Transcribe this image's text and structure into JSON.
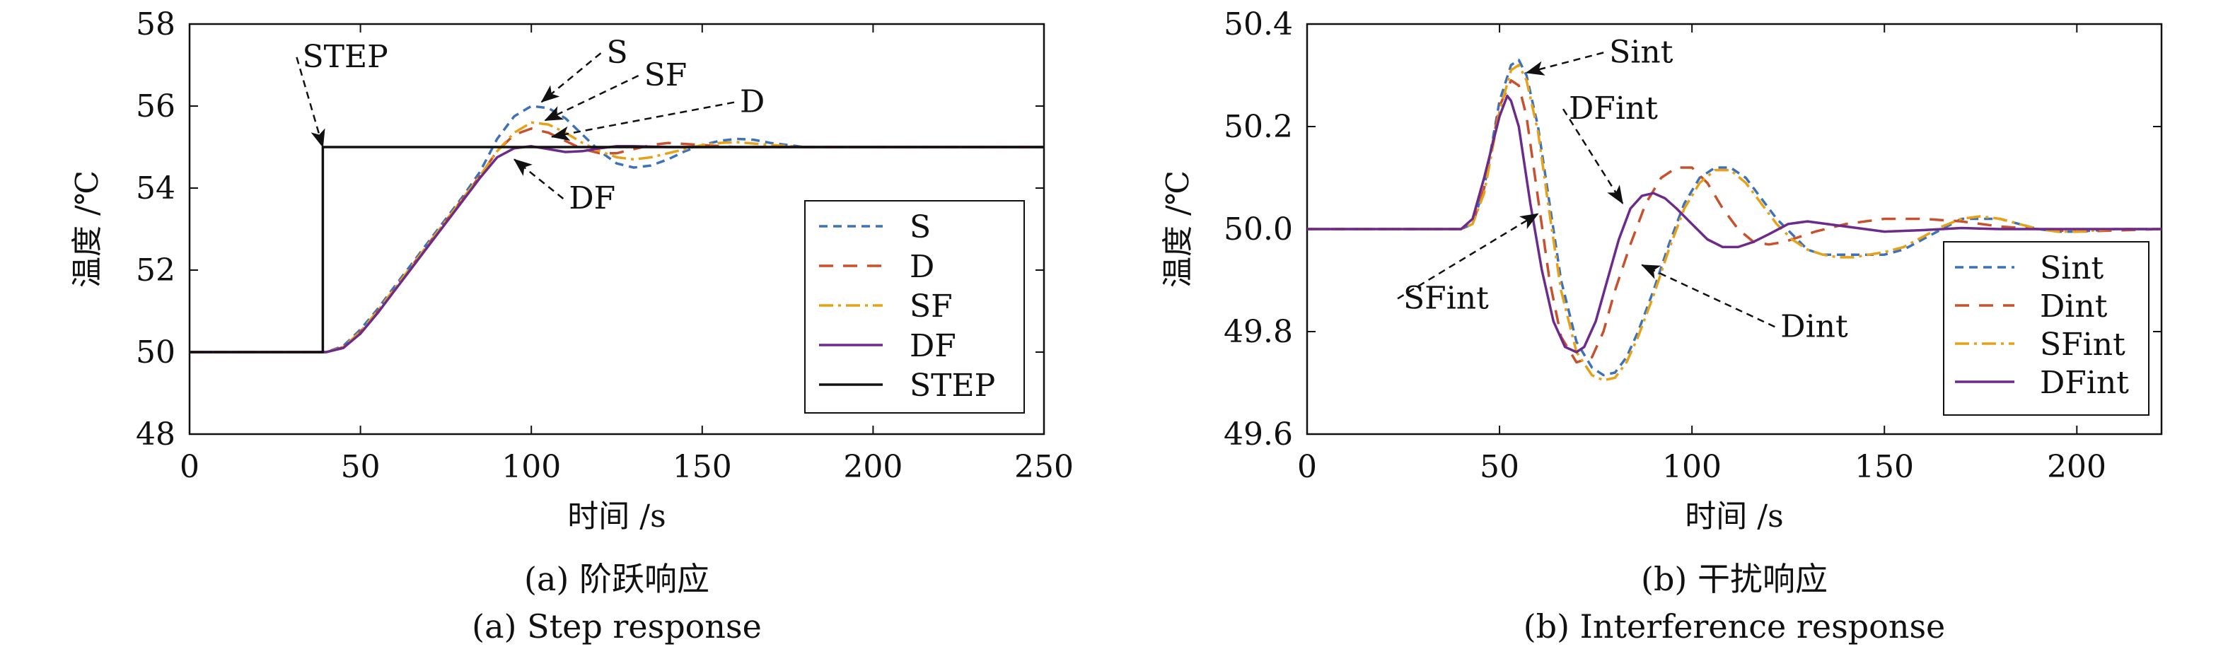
{
  "chart_data": [
    {
      "type": "line",
      "xlabel": "时间 /s",
      "ylabel": "温度 /℃",
      "xlim": [
        0,
        250
      ],
      "ylim": [
        48,
        58
      ],
      "xticks": [
        "0",
        "50",
        "100",
        "150",
        "200",
        "250"
      ],
      "yticks": [
        "48",
        "50",
        "52",
        "54",
        "56",
        "58"
      ],
      "grid": false,
      "legend_position": "bottom-right",
      "caption_cn": "(a) 阶跃响应",
      "caption_en": "(a) Step response",
      "series": [
        {
          "name": "S",
          "color": "#3d72b8",
          "dash": "dashed",
          "x": [
            0,
            40,
            45,
            50,
            55,
            60,
            65,
            70,
            75,
            80,
            85,
            90,
            95,
            100,
            105,
            110,
            115,
            120,
            125,
            130,
            135,
            140,
            145,
            150,
            155,
            160,
            165,
            170,
            175,
            180,
            190,
            200,
            250
          ],
          "y": [
            50,
            50,
            50.15,
            50.55,
            51.05,
            51.6,
            52.15,
            52.7,
            53.25,
            53.8,
            54.4,
            55.2,
            55.75,
            56,
            55.95,
            55.7,
            55.3,
            54.9,
            54.6,
            54.5,
            54.55,
            54.7,
            54.9,
            55.05,
            55.15,
            55.2,
            55.18,
            55.1,
            55.05,
            55,
            55,
            55,
            55
          ]
        },
        {
          "name": "D",
          "color": "#c8502d",
          "dash": "dashed",
          "x": [
            0,
            40,
            45,
            50,
            55,
            60,
            65,
            70,
            75,
            80,
            85,
            90,
            95,
            100,
            105,
            110,
            115,
            120,
            125,
            130,
            135,
            140,
            150,
            160,
            170,
            180,
            200,
            250
          ],
          "y": [
            50,
            50,
            50.12,
            50.5,
            51,
            51.55,
            52.1,
            52.65,
            53.2,
            53.75,
            54.3,
            54.9,
            55.3,
            55.45,
            55.35,
            55.15,
            54.95,
            54.85,
            54.85,
            54.95,
            55.05,
            55.1,
            55.05,
            55,
            55,
            55,
            55,
            55
          ]
        },
        {
          "name": "SF",
          "color": "#e6a117",
          "dash": "dashdot",
          "x": [
            0,
            40,
            45,
            50,
            55,
            60,
            65,
            70,
            75,
            80,
            85,
            90,
            95,
            100,
            105,
            110,
            115,
            120,
            125,
            130,
            135,
            140,
            145,
            150,
            155,
            160,
            170,
            180,
            200,
            250
          ],
          "y": [
            50,
            50,
            50.12,
            50.5,
            51,
            51.55,
            52.1,
            52.65,
            53.2,
            53.75,
            54.3,
            54.9,
            55.35,
            55.6,
            55.55,
            55.35,
            55.1,
            54.9,
            54.75,
            54.7,
            54.75,
            54.85,
            54.95,
            55.05,
            55.1,
            55.12,
            55.05,
            55,
            55,
            55
          ]
        },
        {
          "name": "DF",
          "color": "#6c2a8a",
          "dash": "solid",
          "x": [
            0,
            40,
            45,
            50,
            55,
            60,
            65,
            70,
            75,
            80,
            85,
            90,
            95,
            100,
            105,
            110,
            115,
            120,
            125,
            130,
            140,
            150,
            200,
            250
          ],
          "y": [
            50,
            50,
            50.1,
            50.45,
            50.95,
            51.5,
            52.05,
            52.6,
            53.15,
            53.7,
            54.25,
            54.75,
            54.97,
            55.02,
            54.95,
            54.88,
            54.9,
            54.97,
            55.02,
            55.02,
            55,
            55,
            55,
            55
          ]
        },
        {
          "name": "STEP",
          "color": "#111111",
          "dash": "solid",
          "x": [
            0,
            39,
            39,
            250
          ],
          "y": [
            50,
            50,
            55,
            55
          ]
        }
      ],
      "annotations": [
        {
          "text": "STEP",
          "x": 33,
          "y": 56.95,
          "arrow_to": [
            39,
            55
          ]
        },
        {
          "text": "S",
          "x": 122,
          "y": 57.05,
          "arrow_to": [
            103,
            56.1
          ]
        },
        {
          "text": "SF",
          "x": 133,
          "y": 56.5,
          "arrow_to": [
            104,
            55.65
          ]
        },
        {
          "text": "D",
          "x": 161,
          "y": 55.85,
          "arrow_to": [
            106,
            55.25
          ]
        },
        {
          "text": "DF",
          "x": 111,
          "y": 53.5,
          "arrow_to": [
            95,
            54.7
          ]
        }
      ]
    },
    {
      "type": "line",
      "xlabel": "时间 /s",
      "ylabel": "温度 /℃",
      "xlim": [
        0,
        222
      ],
      "ylim": [
        49.6,
        50.4
      ],
      "xticks": [
        "0",
        "50",
        "100",
        "150",
        "200"
      ],
      "yticks": [
        "49.6",
        "49.8",
        "50.0",
        "50.2",
        "50.4"
      ],
      "grid": false,
      "legend_position": "bottom-right",
      "caption_cn": "(b) 干扰响应",
      "caption_en": "(b) Interference response",
      "series": [
        {
          "name": "Sint",
          "color": "#3d72b8",
          "dash": "dashed",
          "x": [
            0,
            40,
            43,
            46,
            50,
            53,
            55,
            57,
            60,
            63,
            66,
            70,
            74,
            77,
            80,
            83,
            86,
            90,
            94,
            98,
            102,
            106,
            110,
            114,
            118,
            122,
            126,
            130,
            134,
            138,
            142,
            146,
            150,
            155,
            160,
            165,
            170,
            175,
            180,
            185,
            190,
            195,
            200,
            210,
            222
          ],
          "y": [
            50,
            50,
            50.01,
            50.08,
            50.25,
            50.32,
            50.33,
            50.3,
            50.2,
            50.05,
            49.9,
            49.78,
            49.73,
            49.715,
            49.72,
            49.75,
            49.8,
            49.88,
            49.97,
            50.05,
            50.1,
            50.12,
            50.12,
            50.1,
            50.06,
            50.02,
            49.99,
            49.96,
            49.95,
            49.95,
            49.95,
            49.95,
            49.95,
            49.96,
            49.98,
            50,
            50.02,
            50.02,
            50.02,
            50.01,
            50,
            49.995,
            49.995,
            50,
            50
          ]
        },
        {
          "name": "Dint",
          "color": "#c8502d",
          "dash": "dashed",
          "x": [
            0,
            40,
            43,
            46,
            50,
            53,
            55,
            57,
            60,
            63,
            66,
            70,
            74,
            77,
            80,
            84,
            88,
            92,
            96,
            100,
            104,
            108,
            112,
            116,
            120,
            124,
            128,
            132,
            140,
            150,
            160,
            170,
            180,
            200,
            222
          ],
          "y": [
            50,
            50,
            50.01,
            50.08,
            50.24,
            50.29,
            50.28,
            50.22,
            50.06,
            49.9,
            49.79,
            49.74,
            49.75,
            49.8,
            49.88,
            49.97,
            50.05,
            50.1,
            50.12,
            50.12,
            50.09,
            50.04,
            50,
            49.975,
            49.97,
            49.975,
            49.985,
            49.995,
            50.01,
            50.02,
            50.02,
            50.015,
            50.005,
            49.995,
            50
          ]
        },
        {
          "name": "SFint",
          "color": "#e6a117",
          "dash": "dashdot",
          "x": [
            0,
            40,
            43,
            46,
            50,
            53,
            55,
            57,
            60,
            63,
            66,
            70,
            74,
            77,
            80,
            83,
            86,
            90,
            94,
            98,
            102,
            106,
            110,
            114,
            118,
            122,
            126,
            130,
            134,
            138,
            142,
            146,
            150,
            155,
            160,
            165,
            170,
            175,
            180,
            185,
            190,
            195,
            200,
            210,
            222
          ],
          "y": [
            50,
            50,
            50.01,
            50.07,
            50.23,
            50.31,
            50.32,
            50.29,
            50.19,
            50.03,
            49.88,
            49.76,
            49.715,
            49.705,
            49.71,
            49.74,
            49.79,
            49.87,
            49.96,
            50.04,
            50.09,
            50.115,
            50.115,
            50.09,
            50.05,
            50.01,
            49.98,
            49.96,
            49.95,
            49.945,
            49.945,
            49.95,
            49.955,
            49.965,
            49.985,
            50.005,
            50.02,
            50.025,
            50.02,
            50.01,
            50,
            49.995,
            49.995,
            50,
            50
          ]
        },
        {
          "name": "DFint",
          "color": "#6c2a8a",
          "dash": "solid",
          "x": [
            0,
            40,
            43,
            46,
            50,
            52,
            53,
            55,
            58,
            61,
            64,
            67,
            70,
            72,
            75,
            78,
            81,
            84,
            87,
            90,
            93,
            96,
            100,
            104,
            108,
            112,
            116,
            120,
            125,
            130,
            140,
            150,
            160,
            170,
            180,
            200,
            222
          ],
          "y": [
            50,
            50,
            50.02,
            50.1,
            50.22,
            50.26,
            50.25,
            50.2,
            50.05,
            49.92,
            49.82,
            49.77,
            49.76,
            49.77,
            49.82,
            49.9,
            49.98,
            50.04,
            50.065,
            50.07,
            50.06,
            50.04,
            50.01,
            49.98,
            49.965,
            49.965,
            49.975,
            49.99,
            50.01,
            50.015,
            50.005,
            49.995,
            49.998,
            50.002,
            50,
            50,
            50
          ]
        }
      ],
      "annotations": [
        {
          "text": "Sint",
          "x": 78.5,
          "y": 50.325,
          "arrow_to": [
            57,
            50.305
          ]
        },
        {
          "text": "DFint",
          "x": 68,
          "y": 50.215,
          "arrow_to": [
            82,
            50.05
          ]
        },
        {
          "text": "SFint",
          "x": 25,
          "y": 49.845,
          "arrow_to": [
            60,
            50.03
          ]
        },
        {
          "text": "Dint",
          "x": 123,
          "y": 49.79,
          "arrow_to": [
            87,
            49.93
          ]
        }
      ]
    }
  ]
}
